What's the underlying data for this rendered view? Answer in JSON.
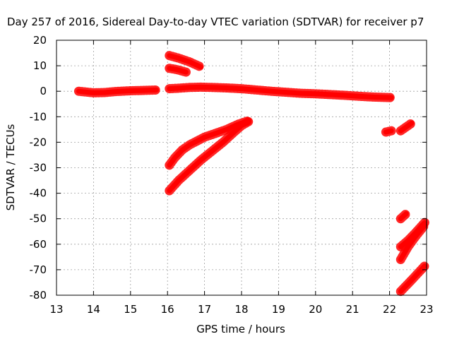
{
  "chart_data": {
    "type": "line",
    "title": "Day 257 of 2016, Sidereal Day-to-day VTEC variation (SDTVAR) for receiver p7",
    "xlabel": "GPS time / hours",
    "ylabel": "SDTVAR / TECUs",
    "xlim": [
      13,
      23
    ],
    "ylim": [
      -80,
      20
    ],
    "xticks": [
      13,
      14,
      15,
      16,
      17,
      18,
      19,
      20,
      21,
      22,
      23
    ],
    "yticks": [
      20,
      10,
      0,
      -10,
      -20,
      -30,
      -40,
      -50,
      -60,
      -70,
      -80
    ],
    "grid": true,
    "legend": "none",
    "series_color": "#ff0000",
    "series": [
      {
        "x": [
          13.6,
          13.8,
          14.0,
          14.3,
          14.6,
          15.0,
          15.3,
          15.7
        ],
        "y": [
          0.0,
          -0.3,
          -0.6,
          -0.5,
          -0.1,
          0.2,
          0.3,
          0.5
        ]
      },
      {
        "x": [
          16.05,
          16.3,
          16.6,
          16.9,
          17.2,
          17.6,
          18.0,
          18.4,
          18.8,
          19.2,
          19.6,
          20.0,
          20.4,
          20.8,
          21.2,
          21.6,
          22.05
        ],
        "y": [
          1.0,
          1.2,
          1.5,
          1.6,
          1.5,
          1.3,
          1.0,
          0.5,
          0.0,
          -0.4,
          -0.8,
          -1.0,
          -1.3,
          -1.6,
          -2.0,
          -2.3,
          -2.5
        ]
      },
      {
        "x": [
          16.05,
          16.3,
          16.6,
          16.9
        ],
        "y": [
          14.0,
          13.0,
          11.5,
          9.5
        ]
      },
      {
        "x": [
          16.05,
          16.25,
          16.5
        ],
        "y": [
          9.0,
          8.5,
          7.5
        ]
      },
      {
        "x": [
          16.05,
          16.2,
          16.4,
          16.6,
          16.8,
          17.0,
          17.3,
          17.6,
          17.9,
          18.2
        ],
        "y": [
          -29.0,
          -26.0,
          -23.0,
          -21.0,
          -19.5,
          -18.0,
          -16.5,
          -15.0,
          -13.0,
          -11.5
        ]
      },
      {
        "x": [
          16.05,
          16.3,
          16.6,
          16.9,
          17.2,
          17.5,
          17.8,
          18.0,
          18.2
        ],
        "y": [
          -39.0,
          -35.0,
          -31.0,
          -27.0,
          -23.5,
          -20.0,
          -16.0,
          -13.5,
          -11.8
        ]
      },
      {
        "x": [
          21.9,
          22.05
        ],
        "y": [
          -16.0,
          -15.5
        ]
      },
      {
        "x": [
          22.3,
          22.6
        ],
        "y": [
          -15.5,
          -12.5
        ]
      },
      {
        "x": [
          22.3,
          22.45
        ],
        "y": [
          -50.0,
          -48.0
        ]
      },
      {
        "x": [
          22.3,
          22.5,
          22.7,
          22.95
        ],
        "y": [
          -61.0,
          -58.5,
          -55.5,
          -51.5
        ]
      },
      {
        "x": [
          22.3,
          22.5,
          22.7,
          22.95
        ],
        "y": [
          -66.0,
          -61.0,
          -57.0,
          -52.5
        ]
      },
      {
        "x": [
          22.3,
          22.6,
          22.95
        ],
        "y": [
          -78.5,
          -74.0,
          -68.5
        ]
      }
    ]
  }
}
